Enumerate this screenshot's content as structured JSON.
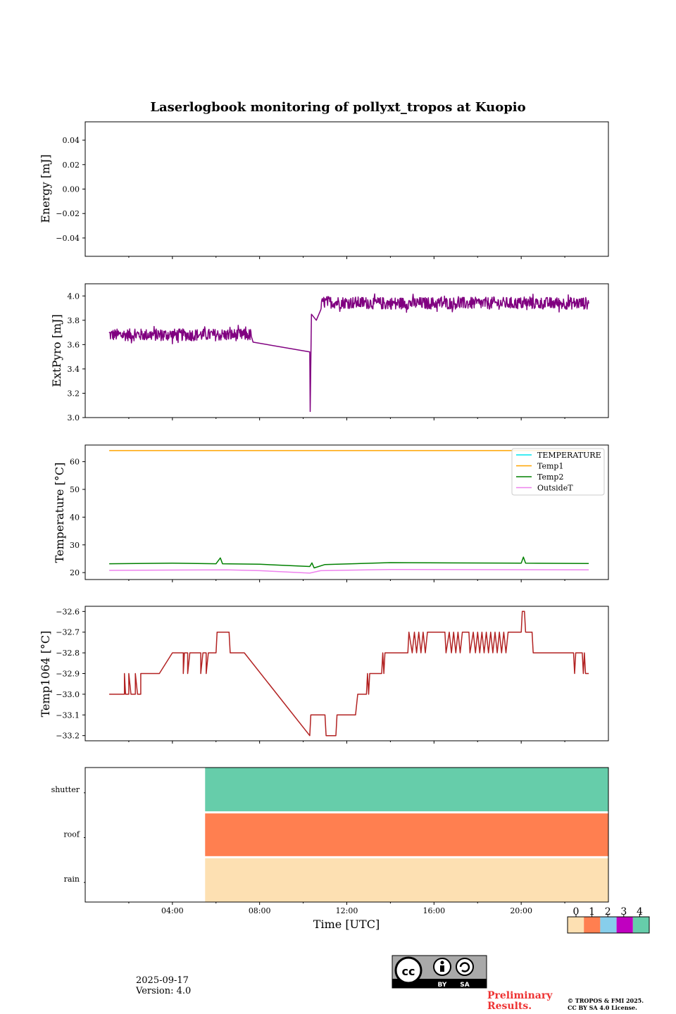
{
  "chart_data": {
    "title": "Laserlogbook monitoring of pollyxt_tropos at Kuopio",
    "xlabel": "Time [UTC]",
    "xlim": [
      0,
      24
    ],
    "xticks": [
      {
        "value": 4,
        "label": "04:00"
      },
      {
        "value": 8,
        "label": "08:00"
      },
      {
        "value": 12,
        "label": "12:00"
      },
      {
        "value": 16,
        "label": "16:00"
      },
      {
        "value": 20,
        "label": "20:00"
      }
    ],
    "panels": [
      {
        "type": "line",
        "ylabel": "Energy [mJ]",
        "ylim": [
          -0.055,
          0.055
        ],
        "yticks": [
          {
            "value": 0.04,
            "label": "0.04"
          },
          {
            "value": 0.02,
            "label": "0.02"
          },
          {
            "value": 0.0,
            "label": "0.00"
          },
          {
            "value": -0.02,
            "label": "−0.02"
          },
          {
            "value": -0.04,
            "label": "−0.04"
          }
        ],
        "series": []
      },
      {
        "type": "line",
        "ylabel": "ExtPyro [mJ]",
        "ylim": [
          3.0,
          4.1
        ],
        "yticks": [
          {
            "value": 4.0,
            "label": "4.0"
          },
          {
            "value": 3.8,
            "label": "3.8"
          },
          {
            "value": 3.6,
            "label": "3.6"
          },
          {
            "value": 3.4,
            "label": "3.4"
          },
          {
            "value": 3.2,
            "label": "3.2"
          },
          {
            "value": 3.0,
            "label": "3.0"
          }
        ],
        "series": [
          {
            "name": "ExtPyro",
            "color": "#800080",
            "noise": 0.05,
            "base": [
              [
                1.1,
                3.68
              ],
              [
                4.0,
                3.68
              ],
              [
                7.6,
                3.68
              ],
              [
                7.7,
                3.62
              ],
              [
                10.3,
                3.54
              ],
              [
                10.32,
                3.05
              ],
              [
                10.38,
                3.85
              ],
              [
                10.6,
                3.8
              ],
              [
                10.9,
                3.95
              ],
              [
                13.6,
                3.94
              ],
              [
                24.0,
                3.94
              ]
            ],
            "noise_ranges": [
              [
                1.1,
                7.6
              ],
              [
                10.8,
                23.1
              ]
            ],
            "end": 23.1
          }
        ]
      },
      {
        "type": "line",
        "ylabel": "Temperature [°C]",
        "ylim": [
          17.5,
          66
        ],
        "yticks": [
          {
            "value": 60,
            "label": "60"
          },
          {
            "value": 50,
            "label": "50"
          },
          {
            "value": 40,
            "label": "40"
          },
          {
            "value": 30,
            "label": "30"
          },
          {
            "value": 20,
            "label": "20"
          }
        ],
        "series": [
          {
            "name": "TEMPERATURE",
            "color": "#00e5ee",
            "points": []
          },
          {
            "name": "Temp1",
            "color": "#ffa500",
            "points": [
              [
                1.1,
                64
              ],
              [
                23.1,
                64
              ]
            ]
          },
          {
            "name": "Temp2",
            "color": "#008000",
            "points": [
              [
                1.1,
                23.2
              ],
              [
                4.0,
                23.4
              ],
              [
                6.0,
                23.2
              ],
              [
                6.2,
                25.3
              ],
              [
                6.3,
                23.2
              ],
              [
                8.0,
                23.0
              ],
              [
                10.3,
                22.2
              ],
              [
                10.4,
                23.5
              ],
              [
                10.5,
                21.7
              ],
              [
                11.0,
                22.9
              ],
              [
                14.0,
                23.6
              ],
              [
                20.0,
                23.4
              ],
              [
                20.1,
                25.6
              ],
              [
                20.2,
                23.4
              ],
              [
                23.1,
                23.3
              ]
            ]
          },
          {
            "name": "OutsideT",
            "color": "#ee82ee",
            "points": [
              [
                1.1,
                20.8
              ],
              [
                6.5,
                21.0
              ],
              [
                8.0,
                20.7
              ],
              [
                10.3,
                19.8
              ],
              [
                10.8,
                20.7
              ],
              [
                14.0,
                21.1
              ],
              [
                23.1,
                21.0
              ]
            ]
          }
        ],
        "legend": "top-right"
      },
      {
        "type": "line",
        "ylabel": "Temp1064 [°C]",
        "ylim": [
          -33.225,
          -32.575
        ],
        "yticks": [
          {
            "value": -32.6,
            "label": "−32.6"
          },
          {
            "value": -32.7,
            "label": "−32.7"
          },
          {
            "value": -32.8,
            "label": "−32.8"
          },
          {
            "value": -32.9,
            "label": "−32.9"
          },
          {
            "value": -33.0,
            "label": "−33.0"
          },
          {
            "value": -33.1,
            "label": "−33.1"
          },
          {
            "value": -33.2,
            "label": "−33.2"
          }
        ],
        "series": [
          {
            "name": "Temp1064",
            "color": "#b22222",
            "points": [
              [
                1.1,
                -33.0
              ],
              [
                1.8,
                -33.0
              ],
              [
                1.8,
                -32.9
              ],
              [
                1.85,
                -33.0
              ],
              [
                2.0,
                -33.0
              ],
              [
                2.0,
                -32.9
              ],
              [
                2.1,
                -33.0
              ],
              [
                2.3,
                -33.0
              ],
              [
                2.3,
                -32.9
              ],
              [
                2.4,
                -33.0
              ],
              [
                2.55,
                -33.0
              ],
              [
                2.55,
                -32.9
              ],
              [
                3.4,
                -32.9
              ],
              [
                4.0,
                -32.8
              ],
              [
                4.5,
                -32.8
              ],
              [
                4.5,
                -32.9
              ],
              [
                4.55,
                -32.8
              ],
              [
                4.7,
                -32.8
              ],
              [
                4.7,
                -32.9
              ],
              [
                4.8,
                -32.8
              ],
              [
                5.3,
                -32.8
              ],
              [
                5.3,
                -32.9
              ],
              [
                5.4,
                -32.8
              ],
              [
                5.55,
                -32.8
              ],
              [
                5.55,
                -32.9
              ],
              [
                5.65,
                -32.8
              ],
              [
                6.0,
                -32.8
              ],
              [
                6.05,
                -32.7
              ],
              [
                6.6,
                -32.7
              ],
              [
                6.65,
                -32.8
              ],
              [
                7.3,
                -32.8
              ],
              [
                10.3,
                -33.2
              ],
              [
                10.35,
                -33.1
              ],
              [
                11.0,
                -33.1
              ],
              [
                11.05,
                -33.2
              ],
              [
                11.5,
                -33.2
              ],
              [
                11.55,
                -33.1
              ],
              [
                12.4,
                -33.1
              ],
              [
                12.5,
                -33.0
              ],
              [
                12.9,
                -33.0
              ],
              [
                12.95,
                -32.9
              ],
              [
                13.0,
                -33.0
              ],
              [
                13.05,
                -32.9
              ],
              [
                13.6,
                -32.9
              ],
              [
                13.65,
                -32.8
              ],
              [
                13.7,
                -32.9
              ],
              [
                13.75,
                -32.8
              ],
              [
                14.8,
                -32.8
              ],
              [
                14.85,
                -32.7
              ],
              [
                15.0,
                -32.8
              ],
              [
                15.1,
                -32.7
              ],
              [
                15.2,
                -32.8
              ],
              [
                15.3,
                -32.7
              ],
              [
                15.4,
                -32.8
              ],
              [
                15.5,
                -32.7
              ],
              [
                15.6,
                -32.8
              ],
              [
                15.7,
                -32.7
              ],
              [
                16.5,
                -32.7
              ],
              [
                16.55,
                -32.8
              ],
              [
                16.7,
                -32.7
              ],
              [
                16.8,
                -32.8
              ],
              [
                16.9,
                -32.7
              ],
              [
                17.0,
                -32.8
              ],
              [
                17.1,
                -32.7
              ],
              [
                17.2,
                -32.8
              ],
              [
                17.3,
                -32.7
              ],
              [
                17.6,
                -32.7
              ],
              [
                17.65,
                -32.8
              ],
              [
                17.8,
                -32.7
              ],
              [
                17.9,
                -32.8
              ],
              [
                18.0,
                -32.7
              ],
              [
                18.1,
                -32.8
              ],
              [
                18.2,
                -32.7
              ],
              [
                18.3,
                -32.8
              ],
              [
                18.4,
                -32.7
              ],
              [
                18.5,
                -32.8
              ],
              [
                18.6,
                -32.7
              ],
              [
                18.7,
                -32.8
              ],
              [
                18.8,
                -32.7
              ],
              [
                18.9,
                -32.8
              ],
              [
                19.0,
                -32.7
              ],
              [
                19.1,
                -32.8
              ],
              [
                19.2,
                -32.7
              ],
              [
                19.3,
                -32.8
              ],
              [
                19.4,
                -32.7
              ],
              [
                20.0,
                -32.7
              ],
              [
                20.05,
                -32.6
              ],
              [
                20.15,
                -32.6
              ],
              [
                20.2,
                -32.7
              ],
              [
                20.5,
                -32.7
              ],
              [
                20.55,
                -32.8
              ],
              [
                22.4,
                -32.8
              ],
              [
                22.45,
                -32.9
              ],
              [
                22.5,
                -32.8
              ],
              [
                22.8,
                -32.8
              ],
              [
                22.85,
                -32.9
              ],
              [
                22.9,
                -32.8
              ],
              [
                22.95,
                -32.9
              ],
              [
                23.1,
                -32.9
              ]
            ]
          }
        ]
      },
      {
        "type": "status",
        "categories": [
          "rain",
          "roof",
          "shutter"
        ],
        "status_start": 5.5,
        "status_values": [
          0,
          1,
          4
        ]
      }
    ],
    "colorbar": {
      "labels": [
        "0",
        "1",
        "2",
        "3",
        "4"
      ],
      "colors": [
        "#fde0b2",
        "#ff7f50",
        "#87ceeb",
        "#c000c0",
        "#66cdaa"
      ]
    }
  },
  "footer": {
    "date": "2025-09-17",
    "version": "Version: 4.0",
    "prelim_line1": "Preliminary",
    "prelim_line2": "Results.",
    "copyright1": "© TROPOS & FMI 2025.",
    "copyright2": "CC BY SA 4.0 License.",
    "cc_by": "BY",
    "cc_sa": "SA"
  }
}
